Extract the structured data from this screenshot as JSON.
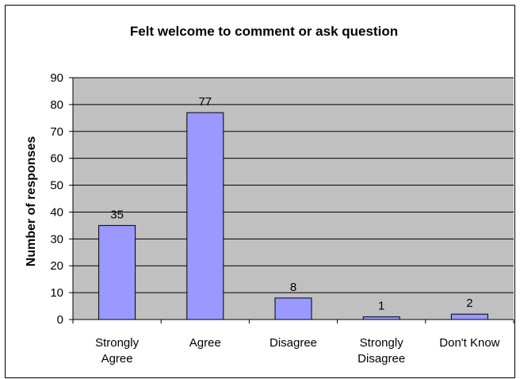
{
  "chart_data": {
    "type": "bar",
    "title": "Felt welcome to comment or ask question",
    "xlabel": "",
    "ylabel": "Number of responses",
    "categories": [
      [
        "Strongly",
        "Agree"
      ],
      [
        "Agree"
      ],
      [
        "Disagree"
      ],
      [
        "Strongly",
        "Disagree"
      ],
      [
        "Don't Know"
      ]
    ],
    "values": [
      35,
      77,
      8,
      1,
      2
    ],
    "data_labels": [
      "35",
      "77",
      "8",
      "1",
      "2"
    ],
    "ylim": [
      0,
      90
    ],
    "yticks": [
      0,
      10,
      20,
      30,
      40,
      50,
      60,
      70,
      80,
      90
    ],
    "grid": true,
    "legend": "none",
    "colors": {
      "bar_fill": "#9999ff",
      "bar_stroke": "#000000",
      "plot_background": "#c0c0c0",
      "gridline": "#000000",
      "page_background": "#ffffff",
      "border": "#000000"
    }
  }
}
